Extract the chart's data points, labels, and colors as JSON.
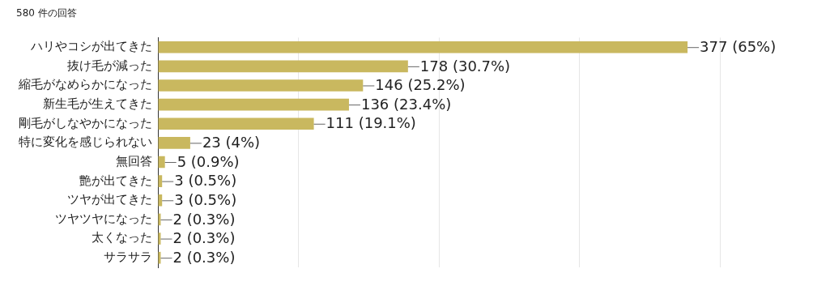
{
  "chart_data": {
    "type": "bar",
    "orientation": "horizontal",
    "title": "580 件の回答",
    "categories": [
      "ハリやコシが出てきた",
      "抜け毛が減った",
      "縮毛がなめらかになった",
      "新生毛が生えてきた",
      "剛毛がしなやかになった",
      "特に変化を感じられない",
      "無回答",
      "艶が出てきた",
      "ツヤが出てきた",
      "ツヤツヤになった",
      "太くなった",
      "サラサラ"
    ],
    "values": [
      377,
      178,
      146,
      136,
      111,
      23,
      5,
      3,
      3,
      2,
      2,
      2
    ],
    "value_labels": [
      "377 (65%)",
      "178 (30.7%)",
      "146 (25.2%)",
      "136 (23.4%)",
      "111 (19.1%)",
      "23 (4%)",
      "5 (0.9%)",
      "3 (0.5%)",
      "3 (0.5%)",
      "2 (0.3%)",
      "2 (0.3%)",
      "2 (0.3%)"
    ],
    "color": "#c9b85f",
    "xlim": [
      0,
      400
    ],
    "xticks": [
      {
        "value": 0,
        "label": null
      },
      {
        "value": 100,
        "label": null
      },
      {
        "value": 200,
        "label": null
      },
      {
        "value": 300,
        "label": null
      },
      {
        "value": 400,
        "label": null
      }
    ],
    "grid": "x",
    "tick_labels": "y",
    "legend": false
  }
}
